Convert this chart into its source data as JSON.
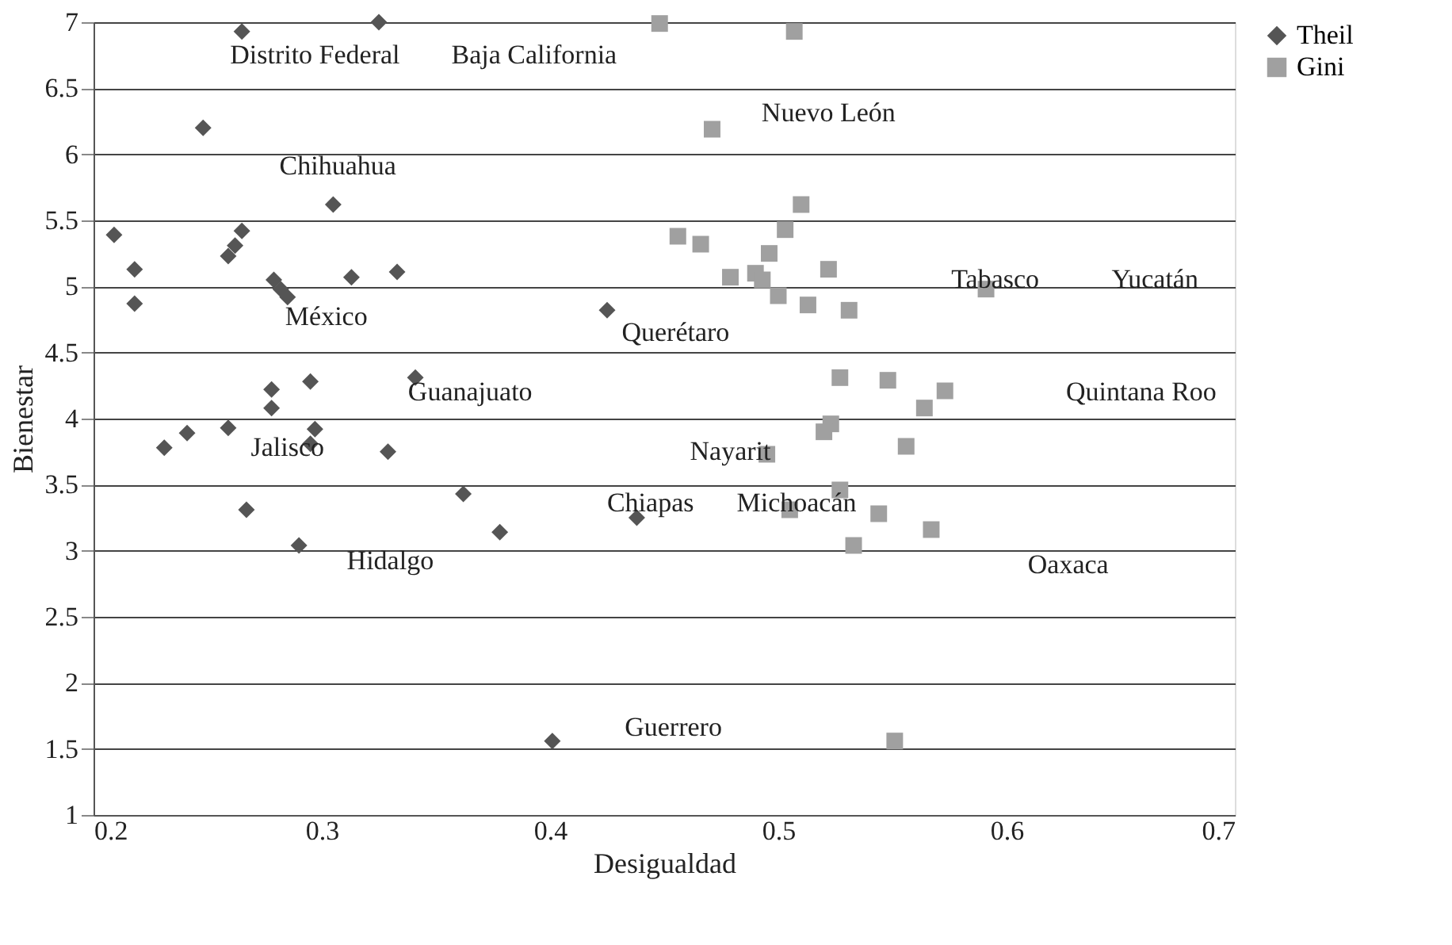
{
  "chart_data": {
    "type": "scatter",
    "xlabel": "Desigualdad",
    "ylabel": "Bienestar",
    "xlim": [
      0.2,
      0.7
    ],
    "xticks": [
      0.2,
      0.3,
      0.4,
      0.5,
      0.6,
      0.7
    ],
    "ylim": [
      1,
      7
    ],
    "yticks": [
      1,
      1.5,
      2,
      2.5,
      3,
      3.5,
      4,
      4.5,
      5,
      5.5,
      6,
      6.5,
      7
    ],
    "grid": "y",
    "legend": "right",
    "series": [
      {
        "name": "Theil",
        "color": "#555555",
        "marker": "diamond",
        "x": [
          0.265,
          0.325,
          0.248,
          0.305,
          0.209,
          0.218,
          0.265,
          0.262,
          0.259,
          0.279,
          0.282,
          0.285,
          0.313,
          0.333,
          0.218,
          0.425,
          0.295,
          0.278,
          0.278,
          0.341,
          0.259,
          0.241,
          0.231,
          0.297,
          0.295,
          0.329,
          0.362,
          0.267,
          0.378,
          0.29,
          0.438,
          0.401
        ],
        "values": [
          6.93,
          7.0,
          6.2,
          5.62,
          5.39,
          5.13,
          5.42,
          5.31,
          5.23,
          5.05,
          4.98,
          4.92,
          5.07,
          5.11,
          4.87,
          4.82,
          4.28,
          4.22,
          4.08,
          4.31,
          3.93,
          3.89,
          3.78,
          3.92,
          3.81,
          3.75,
          3.43,
          3.31,
          3.14,
          3.04,
          3.25,
          1.56
        ]
      },
      {
        "name": "Gini",
        "color": "#a0a0a0",
        "marker": "square",
        "x": [
          0.448,
          0.507,
          0.471,
          0.51,
          0.503,
          0.456,
          0.466,
          0.496,
          0.522,
          0.479,
          0.49,
          0.493,
          0.5,
          0.513,
          0.531,
          0.591,
          0.527,
          0.548,
          0.573,
          0.564,
          0.523,
          0.52,
          0.556,
          0.495,
          0.527,
          0.505,
          0.544,
          0.567,
          0.533,
          0.551
        ],
        "values": [
          6.99,
          6.93,
          6.19,
          5.62,
          5.43,
          5.38,
          5.32,
          5.25,
          5.13,
          5.07,
          5.1,
          5.05,
          4.93,
          4.86,
          4.82,
          4.98,
          4.31,
          4.29,
          4.21,
          4.08,
          3.96,
          3.9,
          3.79,
          3.73,
          3.46,
          3.31,
          3.28,
          3.16,
          3.04,
          1.56
        ]
      }
    ],
    "annotations": [
      "Distrito Federal",
      "Baja California",
      "Nuevo León",
      "Chihuahua",
      "México",
      "Querétaro",
      "Tabasco",
      "Yucatán",
      "Guanajuato",
      "Quintana Roo",
      "Jalisco",
      "Nayarit",
      "Chiapas",
      "Michoacán",
      "Hidalgo",
      "Oaxaca",
      "Guerrero"
    ]
  }
}
